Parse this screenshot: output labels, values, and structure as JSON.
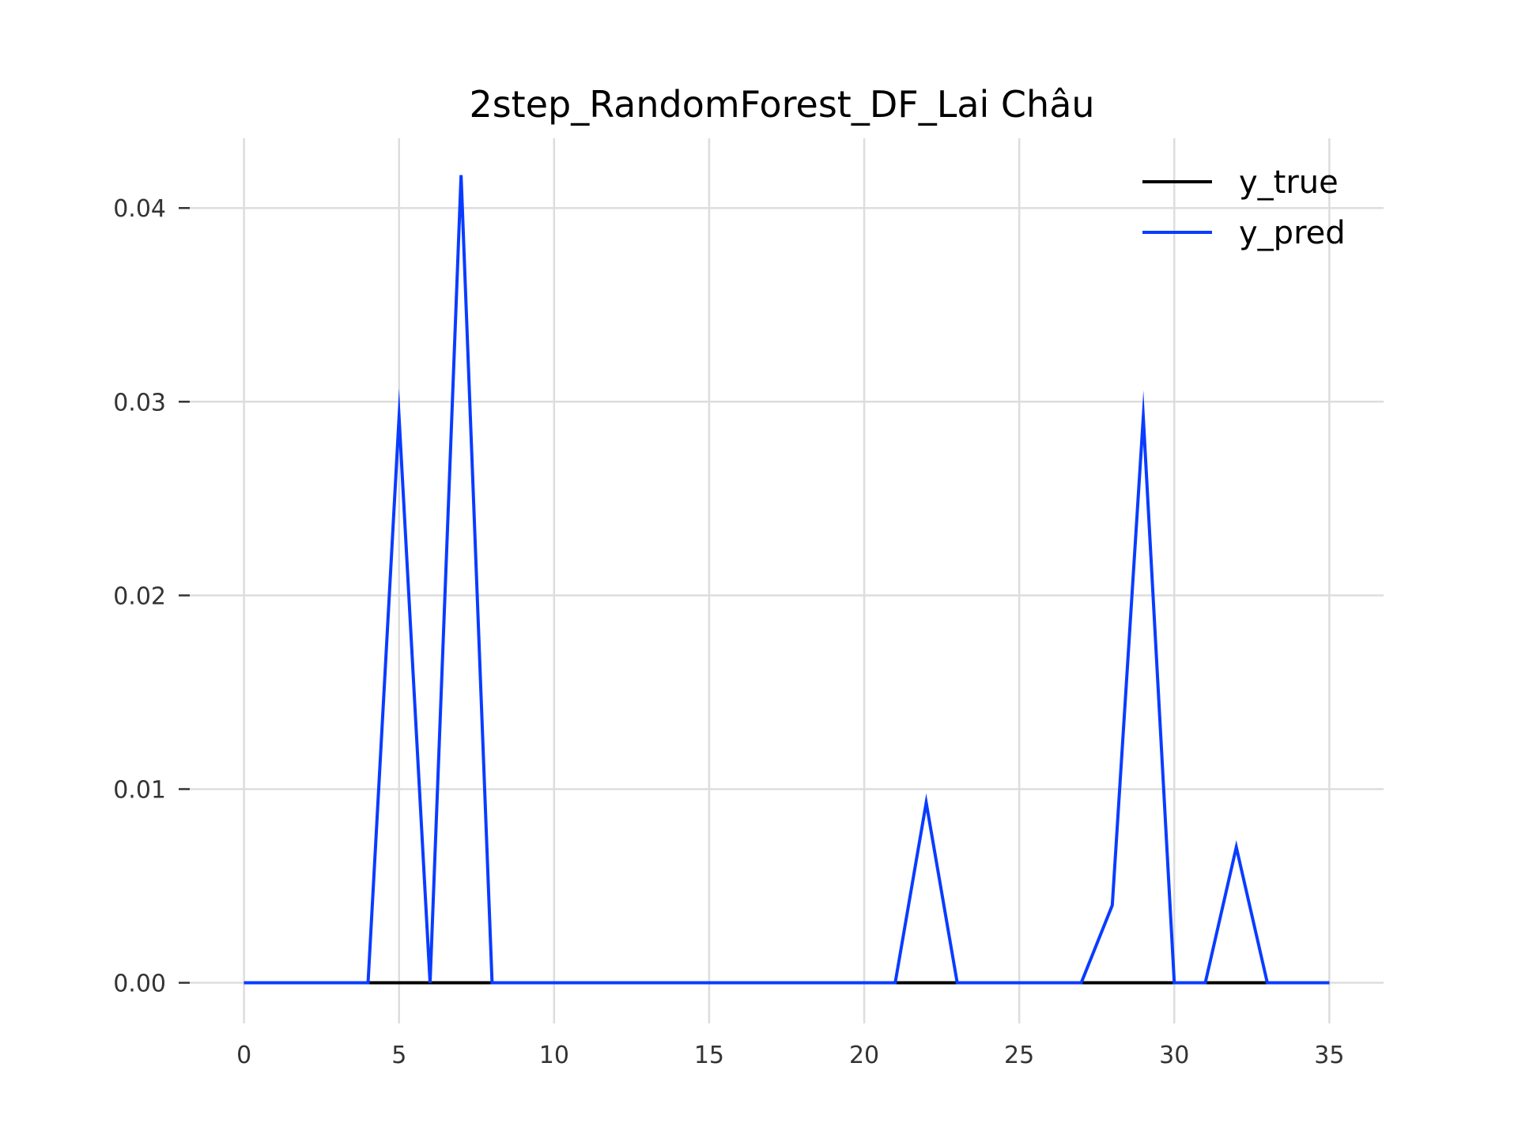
{
  "chart_data": {
    "type": "line",
    "title": "2step_RandomForest_DF_Lai Châu",
    "xlabel": "",
    "ylabel": "",
    "xlim": [
      -1.75,
      36.75
    ],
    "ylim": [
      -0.0021,
      0.0436
    ],
    "xticks": [
      0,
      5,
      10,
      15,
      20,
      25,
      30,
      35
    ],
    "xtick_labels": [
      "0",
      "5",
      "10",
      "15",
      "20",
      "25",
      "30",
      "35"
    ],
    "yticks": [
      0.0,
      0.01,
      0.02,
      0.03,
      0.04
    ],
    "ytick_labels": [
      "0.00",
      "0.01",
      "0.02",
      "0.03",
      "0.04"
    ],
    "grid": true,
    "legend_position": "top-right",
    "x": [
      0,
      1,
      2,
      3,
      4,
      5,
      6,
      7,
      8,
      9,
      10,
      11,
      12,
      13,
      14,
      15,
      16,
      17,
      18,
      19,
      20,
      21,
      22,
      23,
      24,
      25,
      26,
      27,
      28,
      29,
      30,
      31,
      32,
      33,
      34,
      35
    ],
    "series": [
      {
        "name": "y_true",
        "color": "#000000",
        "values": [
          0,
          0,
          0,
          0,
          0,
          0,
          0,
          0,
          0,
          0,
          0,
          0,
          0,
          0,
          0,
          0,
          0,
          0,
          0,
          0,
          0,
          0,
          0,
          0,
          0,
          0,
          0,
          0,
          0,
          0,
          0,
          0,
          0,
          0,
          0,
          0
        ]
      },
      {
        "name": "y_pred",
        "color": "#0a3cff",
        "values": [
          0,
          0,
          0,
          0,
          0,
          0.0292,
          0,
          0.0417,
          0,
          0,
          0,
          0,
          0,
          0,
          0,
          0,
          0,
          0,
          0,
          0,
          0,
          0,
          0.0093,
          0,
          0,
          0,
          0,
          0,
          0.004,
          0.0292,
          0,
          0,
          0.007,
          0,
          0,
          0
        ]
      }
    ]
  }
}
